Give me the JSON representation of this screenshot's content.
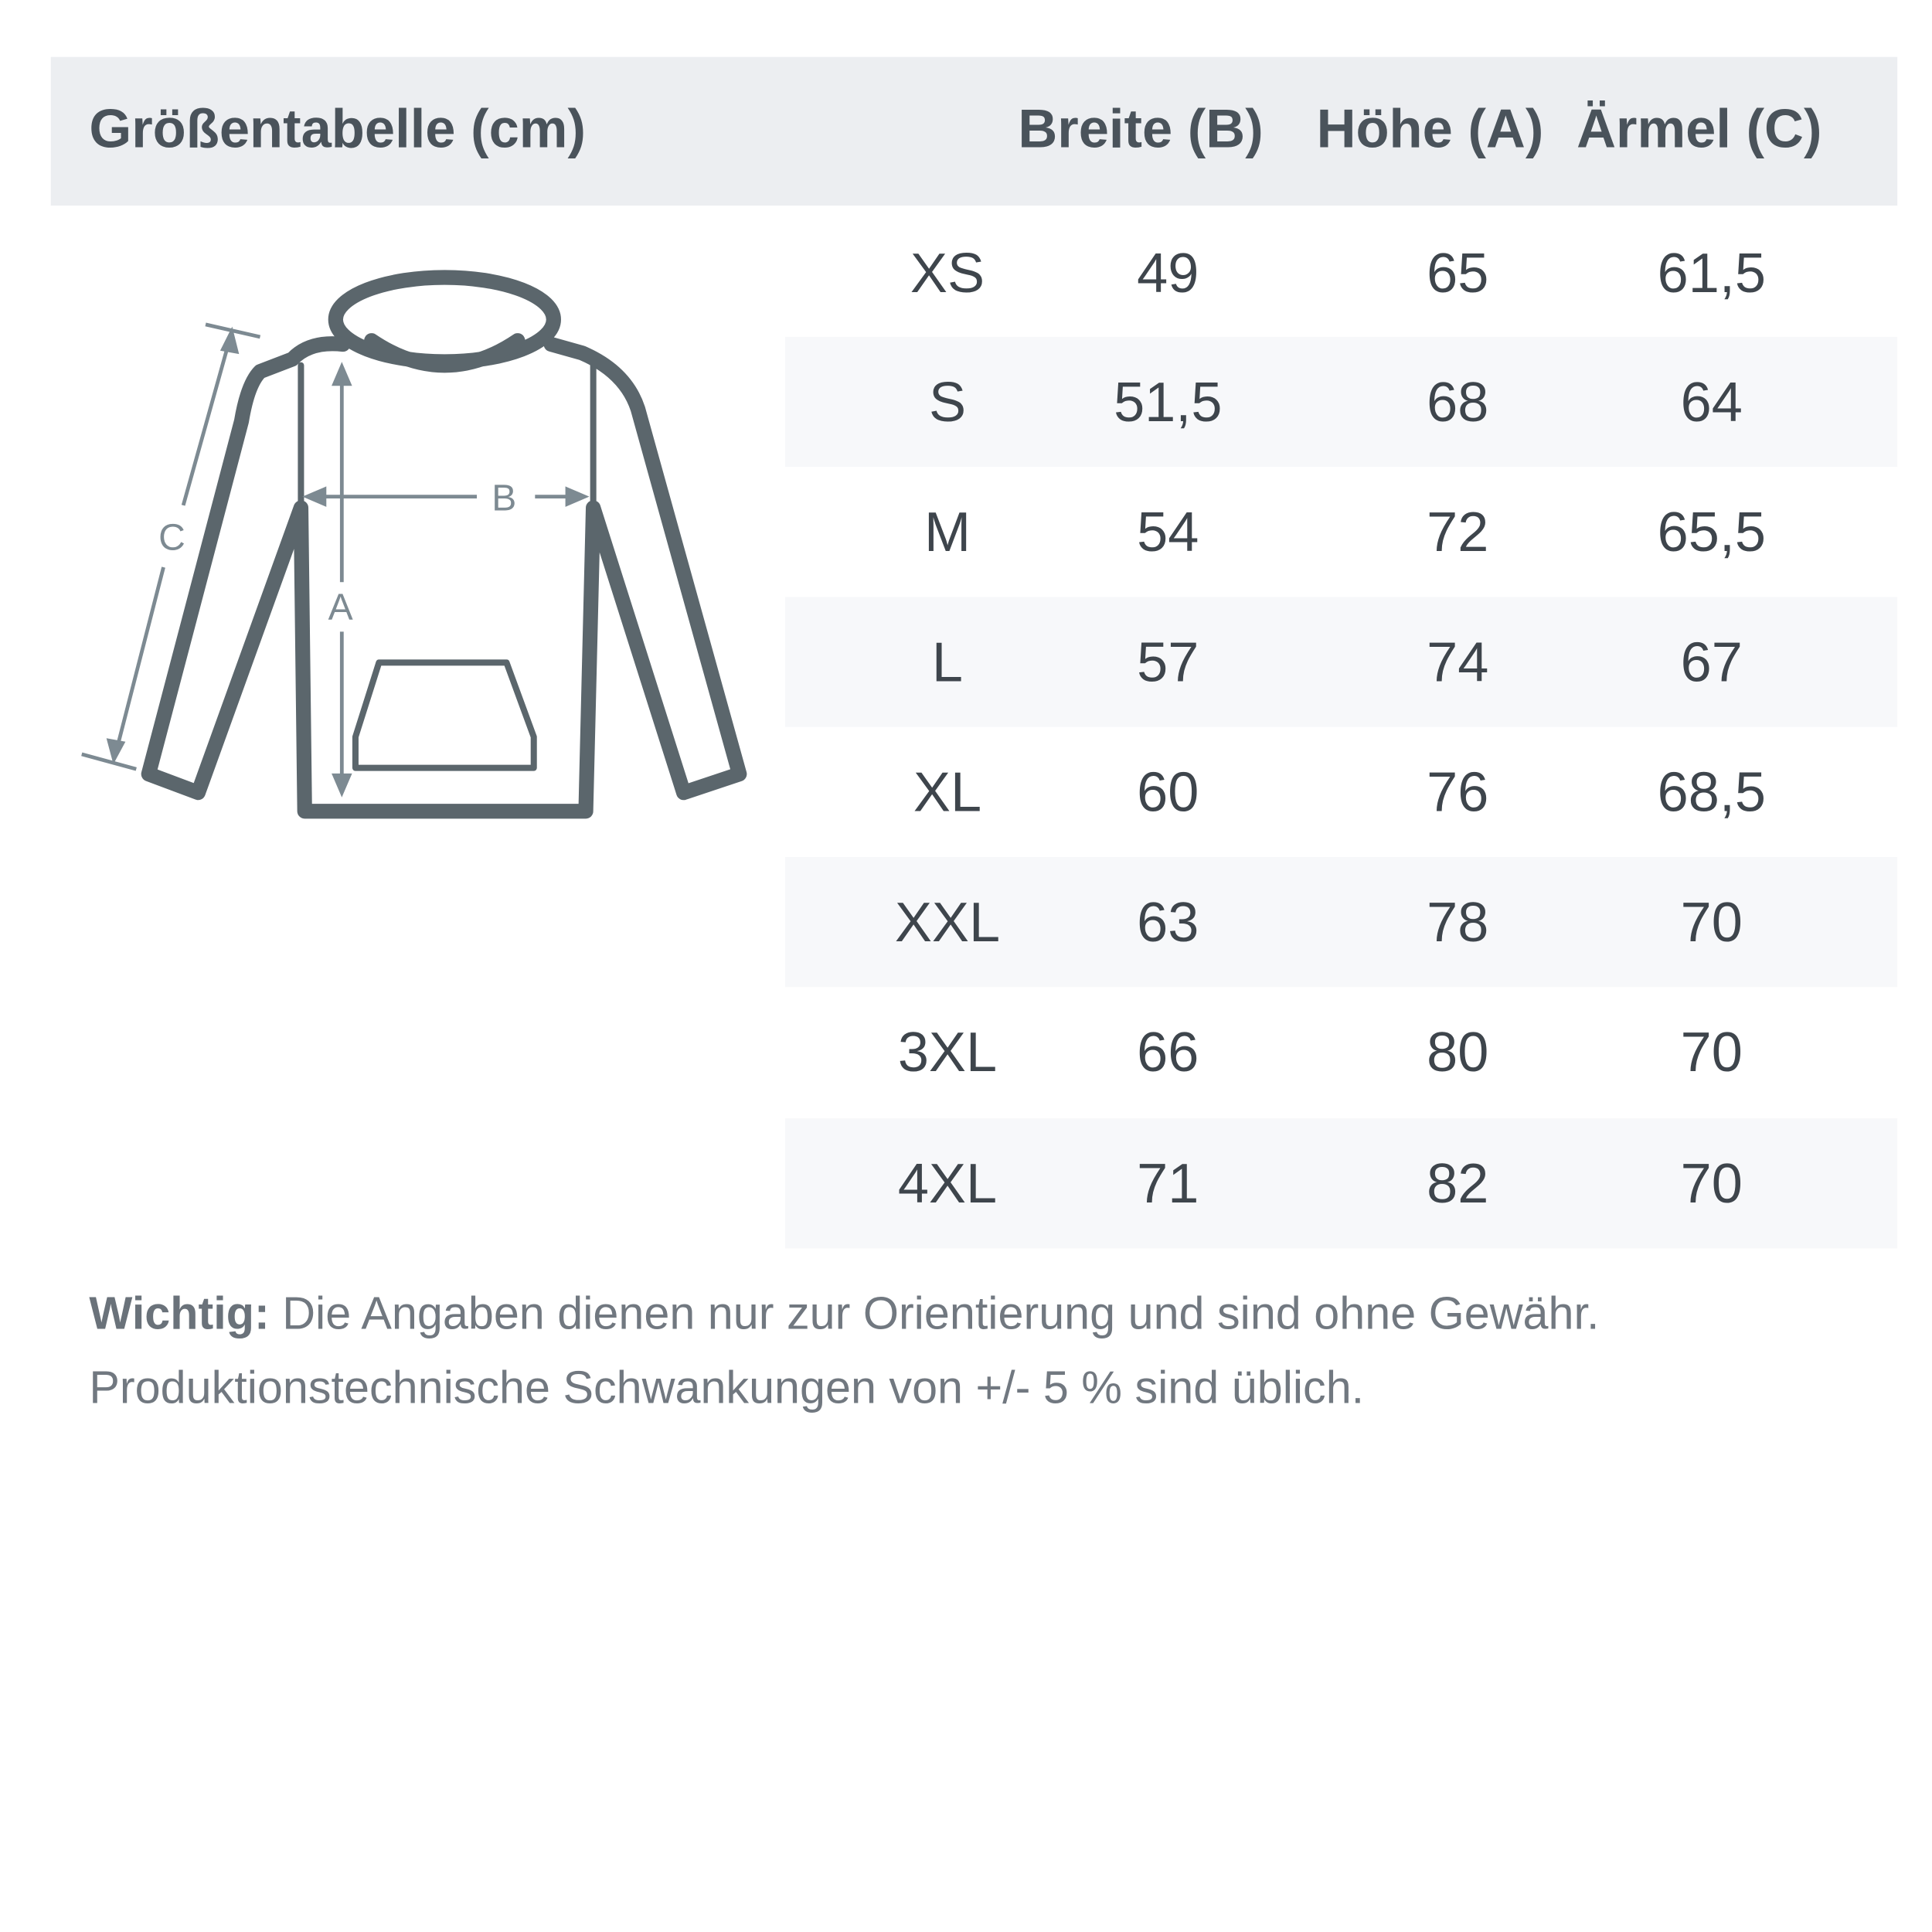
{
  "header": {
    "title": "Größentabelle (cm)",
    "columns": [
      "Breite (B)",
      "Höhe (A)",
      "Ärmel (C)"
    ]
  },
  "diagram": {
    "icon": "hoodie-outline-icon",
    "labels": {
      "width": "B",
      "height": "A",
      "sleeve": "C"
    }
  },
  "rows": [
    {
      "size": "XS",
      "b": "49",
      "a": "65",
      "c": "61,5"
    },
    {
      "size": "S",
      "b": "51,5",
      "a": "68",
      "c": "64"
    },
    {
      "size": "M",
      "b": "54",
      "a": "72",
      "c": "65,5"
    },
    {
      "size": "L",
      "b": "57",
      "a": "74",
      "c": "67"
    },
    {
      "size": "XL",
      "b": "60",
      "a": "76",
      "c": "68,5"
    },
    {
      "size": "XXL",
      "b": "63",
      "a": "78",
      "c": "70"
    },
    {
      "size": "3XL",
      "b": "66",
      "a": "80",
      "c": "70"
    },
    {
      "size": "4XL",
      "b": "71",
      "a": "82",
      "c": "70"
    }
  ],
  "note": {
    "label": "Wichtig:",
    "line1": "Die Angaben dienen nur zur Orientierung und sind ohne Gewähr.",
    "line2": "Produktionstechnische Schwankungen von +/- 5 % sind üblich."
  },
  "colors": {
    "header_bg": "#eceef1",
    "stripe": "#f7f8fa",
    "outline": "#5b666c",
    "measure": "#7d8a92"
  }
}
